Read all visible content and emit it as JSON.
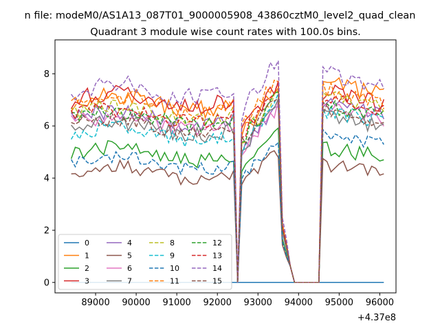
{
  "chart_data": {
    "type": "line",
    "suptitle": "n file: modeM0/AS1A13_087T01_9000005908_43860cztM0_level2_quad_clean",
    "title": "Quadrant 3 module wise count rates with 100.0s bins.",
    "xlabel": "",
    "ylabel": "",
    "x_offset_label": "+4.37e8",
    "xlim": [
      88000,
      96400
    ],
    "ylim": [
      -0.4,
      9.3
    ],
    "x_ticks": [
      89000,
      90000,
      91000,
      92000,
      93000,
      94000,
      95000,
      96000
    ],
    "y_ticks": [
      0,
      2,
      4,
      6,
      8
    ],
    "x_tick_labels": [
      "89000",
      "90000",
      "91000",
      "92000",
      "93000",
      "94000",
      "95000",
      "96000"
    ],
    "y_tick_labels": [
      "0",
      "2",
      "4",
      "6",
      "8"
    ],
    "grid": false,
    "legend_position": "lower-left",
    "legend_columns": 4,
    "x_start": 88400,
    "x_step": 100,
    "segments": [
      [
        88400,
        92500
      ],
      [
        92500,
        94500
      ],
      [
        94600,
        96100
      ]
    ],
    "gap_before": [
      92400,
      92500
    ],
    "gap_after": [
      94500,
      94600
    ],
    "series": [
      {
        "name": "0",
        "color": "#1f77b4",
        "dash": "solid",
        "pre": 0,
        "peak": 0,
        "post": 0,
        "amp": 0
      },
      {
        "name": "1",
        "color": "#ff7f0e",
        "dash": "solid",
        "pre": 6.9,
        "peak": 7.2,
        "post": 7.3,
        "amp": 0.35
      },
      {
        "name": "2",
        "color": "#2ca02c",
        "dash": "solid",
        "pre": 4.9,
        "peak": 5.6,
        "post": 4.9,
        "amp": 0.3
      },
      {
        "name": "3",
        "color": "#d62728",
        "dash": "solid",
        "pre": 7.0,
        "peak": 7.4,
        "post": 7.0,
        "amp": 0.35
      },
      {
        "name": "4",
        "color": "#9467bd",
        "dash": "solid",
        "pre": 6.3,
        "peak": 6.5,
        "post": 6.6,
        "amp": 0.3
      },
      {
        "name": "5",
        "color": "#8c564b",
        "dash": "solid",
        "pre": 4.2,
        "peak": 4.8,
        "post": 4.3,
        "amp": 0.25
      },
      {
        "name": "6",
        "color": "#e377c2",
        "dash": "solid",
        "pre": 6.1,
        "peak": 6.4,
        "post": 6.4,
        "amp": 0.3
      },
      {
        "name": "7",
        "color": "#7f7f7f",
        "dash": "solid",
        "pre": 5.9,
        "peak": 6.6,
        "post": 6.1,
        "amp": 0.3
      },
      {
        "name": "8",
        "color": "#bcbd22",
        "dash": "dashed",
        "pre": 6.5,
        "peak": 7.0,
        "post": 6.8,
        "amp": 0.3
      },
      {
        "name": "9",
        "color": "#17becf",
        "dash": "dashed",
        "pre": 5.7,
        "peak": 6.7,
        "post": 6.3,
        "amp": 0.3
      },
      {
        "name": "10",
        "color": "#1f77b4",
        "dash": "dashed",
        "pre": 4.6,
        "peak": 5.2,
        "post": 5.4,
        "amp": 0.25
      },
      {
        "name": "11",
        "color": "#ff7f0e",
        "dash": "dashed",
        "pre": 6.8,
        "peak": 7.5,
        "post": 7.1,
        "amp": 0.35
      },
      {
        "name": "12",
        "color": "#2ca02c",
        "dash": "dashed",
        "pre": 6.3,
        "peak": 6.9,
        "post": 6.5,
        "amp": 0.3
      },
      {
        "name": "13",
        "color": "#d62728",
        "dash": "dashed",
        "pre": 6.4,
        "peak": 7.2,
        "post": 6.7,
        "amp": 0.3
      },
      {
        "name": "14",
        "color": "#9467bd",
        "dash": "dashed",
        "pre": 7.3,
        "peak": 8.3,
        "post": 7.6,
        "amp": 0.4
      },
      {
        "name": "15",
        "color": "#8c564b",
        "dash": "dashed",
        "pre": 6.0,
        "peak": 6.8,
        "post": 6.3,
        "amp": 0.3
      }
    ]
  }
}
